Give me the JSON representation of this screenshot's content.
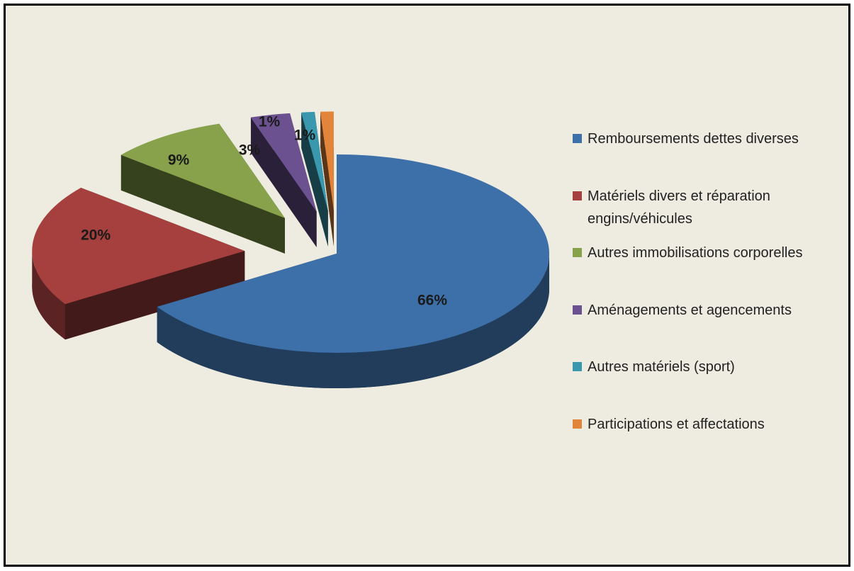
{
  "chart_data": {
    "type": "pie",
    "categories": [
      "Remboursements dettes diverses",
      "Matériels divers et réparation engins/véhicules",
      "Autres immobilisations corporelles",
      "Aménagements et agencements",
      "Autres matériels (sport)",
      "Participations et affectations"
    ],
    "values": [
      66,
      20,
      9,
      3,
      1,
      1
    ],
    "value_labels": [
      "66%",
      "20%",
      "9%",
      "3%",
      "1%",
      "1%"
    ],
    "colors": [
      "#3d6fa8",
      "#a5403f",
      "#87a24a",
      "#6c5190",
      "#3a98ae",
      "#e2843a"
    ],
    "legend": "right"
  }
}
